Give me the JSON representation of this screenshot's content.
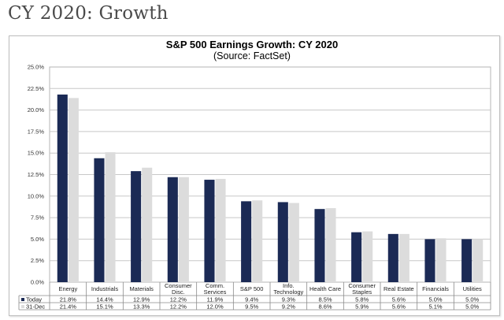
{
  "page": {
    "title": "CY 2020: Growth"
  },
  "chart_data": {
    "type": "bar",
    "title": "S&P 500 Earnings Growth: CY 2020",
    "subtitle": "(Source: FactSet)",
    "xlabel": "",
    "ylabel": "",
    "ylim": [
      0,
      25
    ],
    "yticks": [
      "0.0%",
      "2.5%",
      "5.0%",
      "7.5%",
      "10.0%",
      "12.5%",
      "15.0%",
      "17.5%",
      "20.0%",
      "22.5%",
      "25.0%"
    ],
    "ytick_values": [
      0,
      2.5,
      5,
      7.5,
      10,
      12.5,
      15,
      17.5,
      20,
      22.5,
      25
    ],
    "grid": true,
    "legend": "data-table",
    "categories": [
      "Energy",
      "Industrials",
      "Materials",
      "Consumer Disc.",
      "Comm. Services",
      "S&P 500",
      "Info. Technology",
      "Health Care",
      "Consumer Staples",
      "Real Estate",
      "Financials",
      "Utilities"
    ],
    "category_lines": [
      [
        "Energy"
      ],
      [
        "Industrials"
      ],
      [
        "Materials"
      ],
      [
        "Consumer",
        "Disc."
      ],
      [
        "Comm.",
        "Services"
      ],
      [
        "S&P 500"
      ],
      [
        "Info.",
        "Technology"
      ],
      [
        "Health Care"
      ],
      [
        "Consumer",
        "Staples"
      ],
      [
        "Real Estate"
      ],
      [
        "Financials"
      ],
      [
        "Utilities"
      ]
    ],
    "series": [
      {
        "name": "Today",
        "color": "#1b2a55",
        "values": [
          21.8,
          14.4,
          12.9,
          12.2,
          11.9,
          9.4,
          9.3,
          8.5,
          5.8,
          5.6,
          5.0,
          5.0
        ],
        "labels": [
          "21.8%",
          "14.4%",
          "12.9%",
          "12.2%",
          "11.9%",
          "9.4%",
          "9.3%",
          "8.5%",
          "5.8%",
          "5.6%",
          "5.0%",
          "5.0%"
        ]
      },
      {
        "name": "31-Dec",
        "color": "#dcdcdc",
        "values": [
          21.4,
          15.1,
          13.3,
          12.2,
          12.0,
          9.5,
          9.2,
          8.6,
          5.9,
          5.6,
          5.1,
          5.0
        ],
        "labels": [
          "21.4%",
          "15.1%",
          "13.3%",
          "12.2%",
          "12.0%",
          "9.5%",
          "9.2%",
          "8.6%",
          "5.9%",
          "5.6%",
          "5.1%",
          "5.0%"
        ]
      }
    ]
  }
}
